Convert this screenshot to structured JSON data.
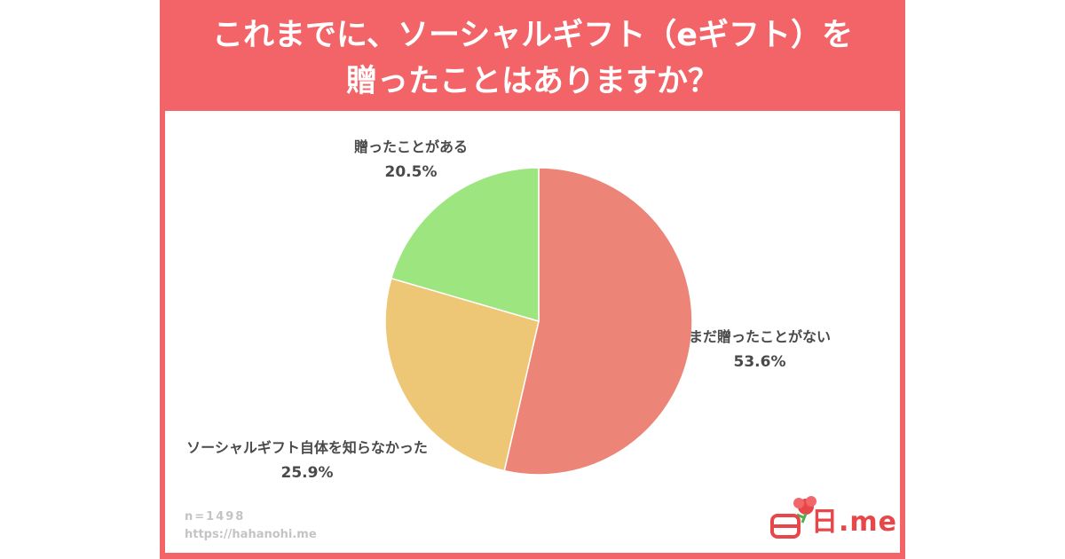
{
  "header": {
    "title_line1": "これまでに、ソーシャルギフト（eギフト）を",
    "title_line2": "贈ったことはありますか？"
  },
  "footer": {
    "n": "n=1498",
    "url": "https://hahanohi.me"
  },
  "logo": {
    "text": "日.me"
  },
  "colors": {
    "frame": "#f26467",
    "never_sent": "#ec8577",
    "unknown": "#edc776",
    "sent": "#9de57f"
  },
  "chart_data": {
    "type": "pie",
    "title": "これまでに、ソーシャルギフト（eギフト）を贈ったことはありますか？",
    "slices": [
      {
        "label": "まだ贈ったことがない",
        "value": 53.6,
        "display": "53.6%",
        "color": "#ec8577"
      },
      {
        "label": "ソーシャルギフト自体を知らなかった",
        "value": 25.9,
        "display": "25.9%",
        "color": "#edc776"
      },
      {
        "label": "贈ったことがある",
        "value": 20.5,
        "display": "20.5%",
        "color": "#9de57f"
      }
    ],
    "start_angle": "12 o'clock, clockwise"
  }
}
